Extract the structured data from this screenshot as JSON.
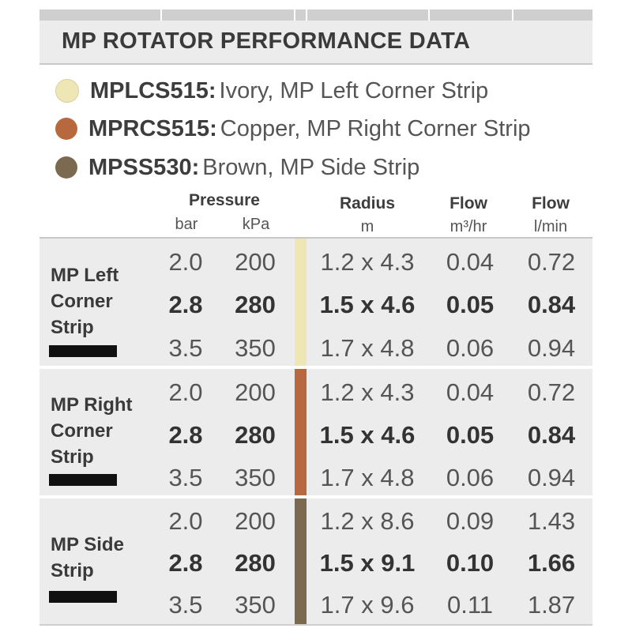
{
  "title": "MP ROTATOR PERFORMANCE DATA",
  "legend": [
    {
      "code": "MPLCS515:",
      "description": "Ivory, MP Left Corner Strip",
      "color": "#efe6b6"
    },
    {
      "code": "MPRCS515:",
      "description": "Copper, MP Right Corner Strip",
      "color": "#b8683e"
    },
    {
      "code": "MPSS530:",
      "description": "Brown, MP Side Strip",
      "color": "#7b6a4f"
    }
  ],
  "headers": {
    "pressure": "Pressure",
    "bar": "bar",
    "kpa": "kPa",
    "radius": "Radius",
    "radius_unit": "m",
    "flow1": "Flow",
    "flow1_unit": "m³/hr",
    "flow2": "Flow",
    "flow2_unit": "l/min"
  },
  "groups": [
    {
      "label": [
        "MP Left",
        "Corner",
        "Strip"
      ],
      "stripe_color": "#efe6b6",
      "rows": [
        {
          "bar": "2.0",
          "kpa": "200",
          "radius": "1.2 x 4.3",
          "flow_m3": "0.04",
          "flow_lmin": "0.72",
          "bold": false
        },
        {
          "bar": "2.8",
          "kpa": "280",
          "radius": "1.5 x 4.6",
          "flow_m3": "0.05",
          "flow_lmin": "0.84",
          "bold": true
        },
        {
          "bar": "3.5",
          "kpa": "350",
          "radius": "1.7 x 4.8",
          "flow_m3": "0.06",
          "flow_lmin": "0.94",
          "bold": false
        }
      ]
    },
    {
      "label": [
        "MP Right",
        "Corner",
        "Strip"
      ],
      "stripe_color": "#b8683e",
      "rows": [
        {
          "bar": "2.0",
          "kpa": "200",
          "radius": "1.2 x 4.3",
          "flow_m3": "0.04",
          "flow_lmin": "0.72",
          "bold": false
        },
        {
          "bar": "2.8",
          "kpa": "280",
          "radius": "1.5 x 4.6",
          "flow_m3": "0.05",
          "flow_lmin": "0.84",
          "bold": true
        },
        {
          "bar": "3.5",
          "kpa": "350",
          "radius": "1.7 x 4.8",
          "flow_m3": "0.06",
          "flow_lmin": "0.94",
          "bold": false
        }
      ]
    },
    {
      "label": [
        "MP Side",
        "Strip"
      ],
      "stripe_color": "#7b6a4f",
      "rows": [
        {
          "bar": "2.0",
          "kpa": "200",
          "radius": "1.2 x 8.6",
          "flow_m3": "0.09",
          "flow_lmin": "1.43",
          "bold": false
        },
        {
          "bar": "2.8",
          "kpa": "280",
          "radius": "1.5 x 9.1",
          "flow_m3": "0.10",
          "flow_lmin": "1.66",
          "bold": true
        },
        {
          "bar": "3.5",
          "kpa": "350",
          "radius": "1.7 x 9.6",
          "flow_m3": "0.11",
          "flow_lmin": "1.87",
          "bold": false
        }
      ]
    }
  ]
}
